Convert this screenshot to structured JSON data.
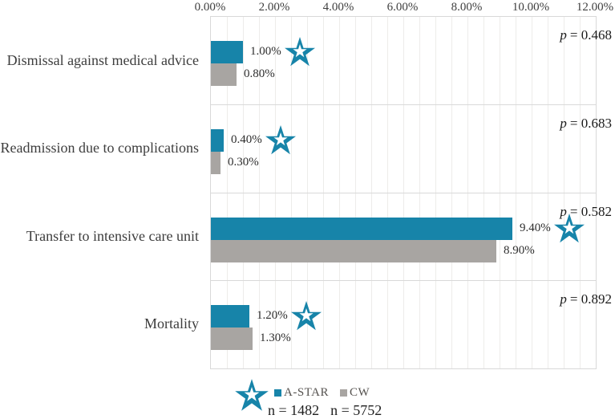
{
  "chart_data": {
    "type": "bar",
    "orientation": "horizontal",
    "title": "",
    "categories": [
      "Dismissal against medical advice",
      "Readmission due to complications",
      "Transfer to intensive care unit",
      "Mortality"
    ],
    "series": [
      {
        "name": "A-STAR",
        "n_label": "n = 1482",
        "color": "#1784a9",
        "values": [
          1.0,
          0.4,
          9.4,
          1.2
        ],
        "value_labels": [
          "1.00%",
          "0.40%",
          "9.40%",
          "1.20%"
        ]
      },
      {
        "name": "CW",
        "n_label": "n = 5752",
        "color": "#a8a5a2",
        "values": [
          0.8,
          0.3,
          8.9,
          1.3
        ],
        "value_labels": [
          "0.80%",
          "0.30%",
          "8.90%",
          "1.30%"
        ]
      }
    ],
    "p_values": [
      {
        "sym": "p",
        "rest": "= 0.468"
      },
      {
        "sym": "p",
        "rest": "= 0.683"
      },
      {
        "sym": "p",
        "rest": "= 0.582"
      },
      {
        "sym": "p",
        "rest": "= 0.892"
      }
    ],
    "xaxis": {
      "min": 0,
      "max": 12,
      "tick_labels": [
        "0.00%",
        "2.00%",
        "4.00%",
        "6.00%",
        "8.00%",
        "10.00%",
        "12.00%"
      ],
      "minor_grid_step_pct": 0.5,
      "position": "top"
    },
    "marker": {
      "name": "star-icon",
      "color": "#1784a9"
    },
    "legend_position": "bottom",
    "grid": "minor-vertical"
  }
}
